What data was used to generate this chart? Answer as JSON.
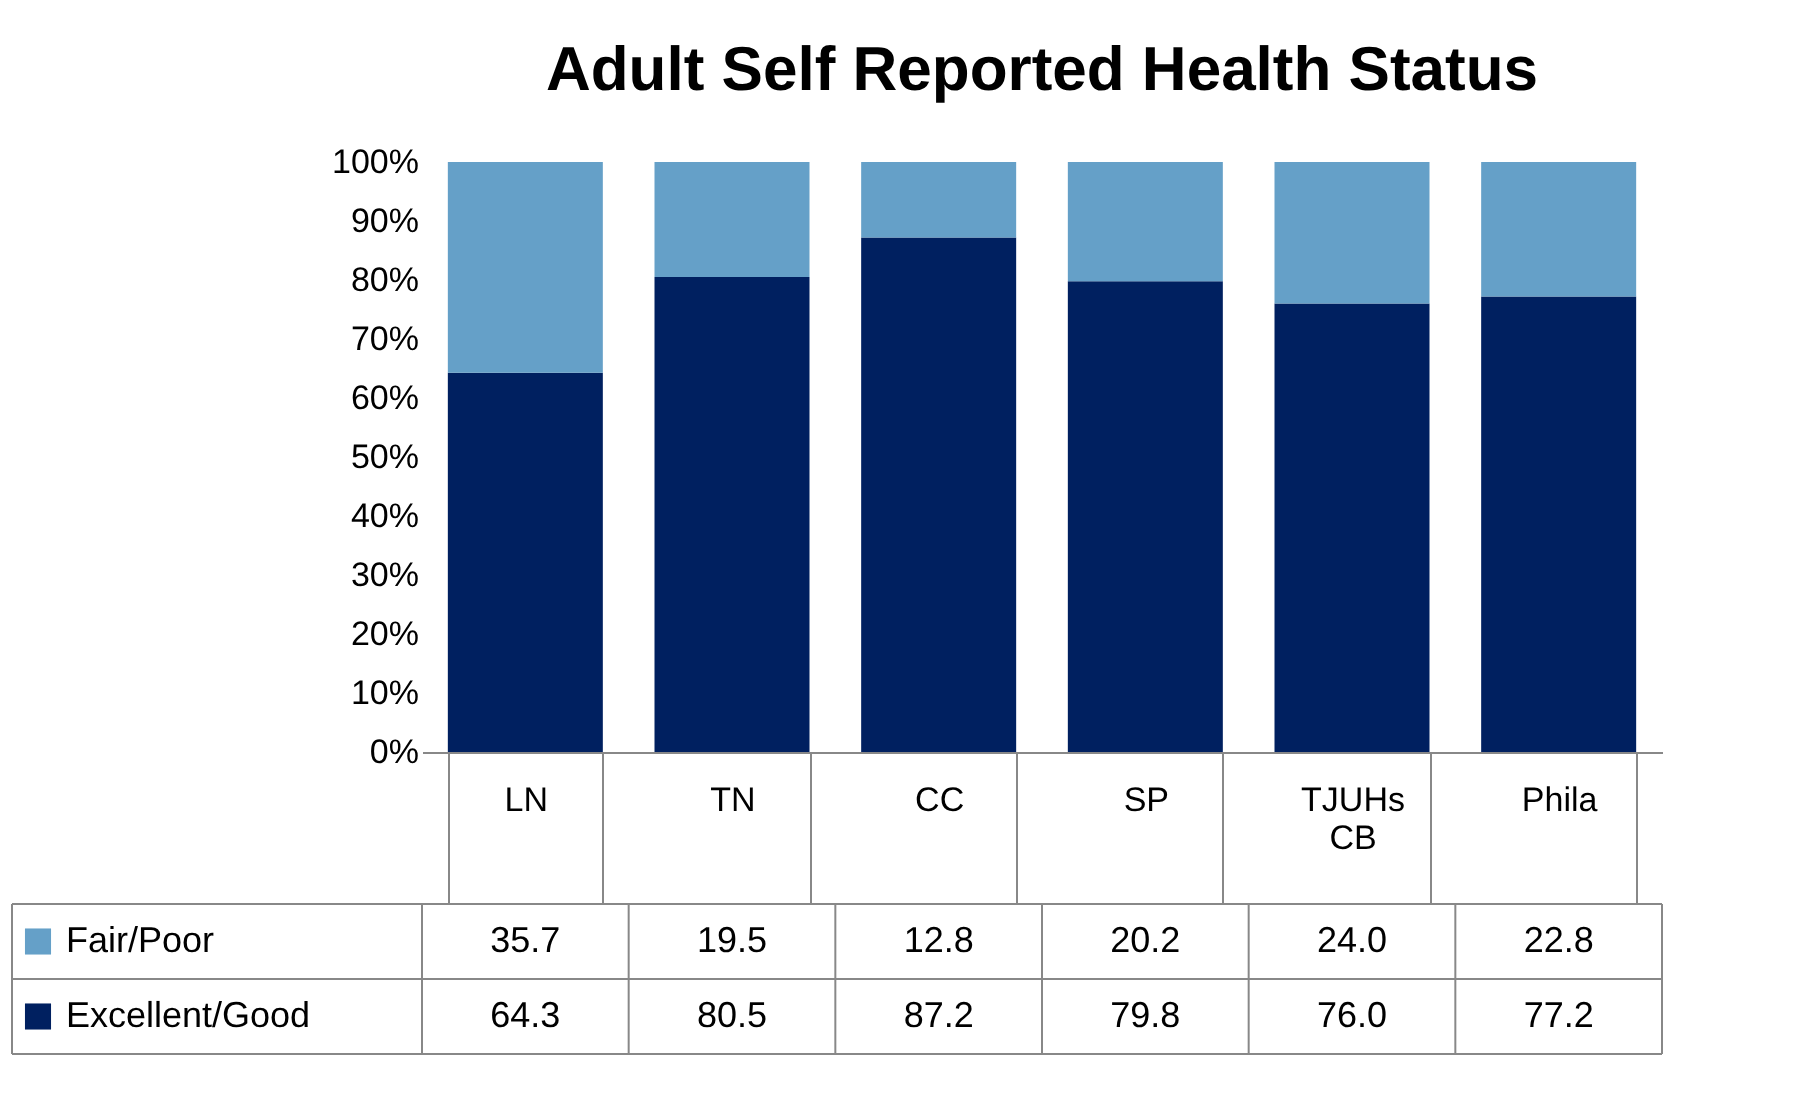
{
  "chart_data": {
    "type": "bar",
    "title": "Adult Self Reported Health Status",
    "categories": [
      "LN",
      "TN",
      "CC",
      "SP",
      "TJUHs CB",
      "Phila"
    ],
    "stacked": true,
    "series": [
      {
        "name": "Excellent/Good",
        "color": "#002060",
        "values": [
          64.3,
          80.5,
          87.2,
          79.8,
          76.0,
          77.2
        ],
        "value_labels": [
          "64.3",
          "80.5",
          "87.2",
          "79.8",
          "76.0",
          "77.2"
        ]
      },
      {
        "name": "Fair/Poor",
        "color": "#65a0c8",
        "values": [
          35.7,
          19.5,
          12.8,
          20.2,
          24.0,
          22.8
        ],
        "value_labels": [
          "35.7",
          "19.5",
          "12.8",
          "20.2",
          "24.0",
          "22.8"
        ]
      }
    ],
    "ylim": [
      0,
      100
    ],
    "yticks": [
      {
        "value": 0,
        "label": "0%"
      },
      {
        "value": 10,
        "label": "10%"
      },
      {
        "value": 20,
        "label": "20%"
      },
      {
        "value": 30,
        "label": "30%"
      },
      {
        "value": 40,
        "label": "40%"
      },
      {
        "value": 50,
        "label": "50%"
      },
      {
        "value": 60,
        "label": "60%"
      },
      {
        "value": 70,
        "label": "70%"
      },
      {
        "value": 80,
        "label": "80%"
      },
      {
        "value": 90,
        "label": "90%"
      },
      {
        "value": 100,
        "label": "100%"
      }
    ],
    "legend": "bottom"
  }
}
